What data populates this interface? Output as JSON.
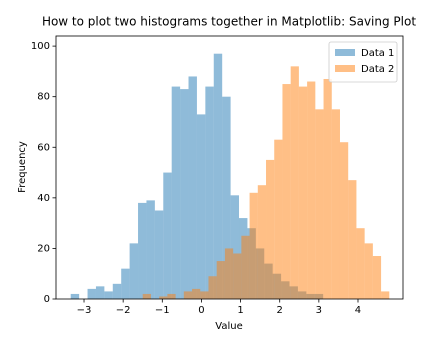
{
  "chart_data": {
    "type": "histogram",
    "title": "How to plot two histograms together in Matplotlib: Saving Plot",
    "xlabel": "Value",
    "ylabel": "Frequency",
    "xlim": [
      -3.716,
      5.15
    ],
    "ylim": [
      0,
      104
    ],
    "xticks": [
      {
        "value": -3,
        "label": "−3"
      },
      {
        "value": -2,
        "label": "−2"
      },
      {
        "value": -1,
        "label": "−1"
      },
      0,
      1,
      2,
      3,
      4
    ],
    "yticks": [
      0,
      20,
      40,
      60,
      80,
      100
    ],
    "legend": "upper right",
    "alpha": 0.5,
    "series": [
      {
        "name": "Data 1",
        "color": "#1f77b4",
        "bins": [
          -3.34,
          -3.125,
          -2.91,
          -2.695,
          -2.48,
          -2.265,
          -2.05,
          -1.835,
          -1.62,
          -1.405,
          -1.19,
          -0.975,
          -0.76,
          -0.545,
          -0.33,
          -0.115,
          0.1,
          0.315,
          0.53,
          0.745,
          0.96,
          1.175,
          1.39,
          1.605,
          1.82,
          2.035,
          2.25,
          2.465,
          2.68,
          2.895,
          3.11
        ],
        "values": [
          2,
          0,
          4,
          5,
          3,
          6,
          12,
          22,
          38,
          39,
          35,
          50,
          84,
          83,
          88,
          73,
          84,
          97,
          80,
          41,
          32,
          28,
          20,
          14,
          10,
          7,
          5,
          3,
          2,
          2
        ]
      },
      {
        "name": "Data 2",
        "color": "#ff7f0e",
        "bins": [
          -1.5,
          -1.29,
          -1.08,
          -0.87,
          -0.66,
          -0.45,
          -0.24,
          -0.03,
          0.18,
          0.39,
          0.6,
          0.81,
          1.02,
          1.23,
          1.44,
          1.65,
          1.86,
          2.07,
          2.28,
          2.49,
          2.7,
          2.91,
          3.12,
          3.33,
          3.54,
          3.75,
          3.96,
          4.17,
          4.38,
          4.59,
          4.8
        ],
        "values": [
          2,
          0,
          1,
          2,
          0,
          3,
          4,
          3,
          9,
          15,
          20,
          18,
          25,
          42,
          45,
          55,
          63,
          85,
          92,
          84,
          86,
          75,
          87,
          75,
          62,
          47,
          28,
          22,
          17,
          3
        ]
      }
    ]
  }
}
